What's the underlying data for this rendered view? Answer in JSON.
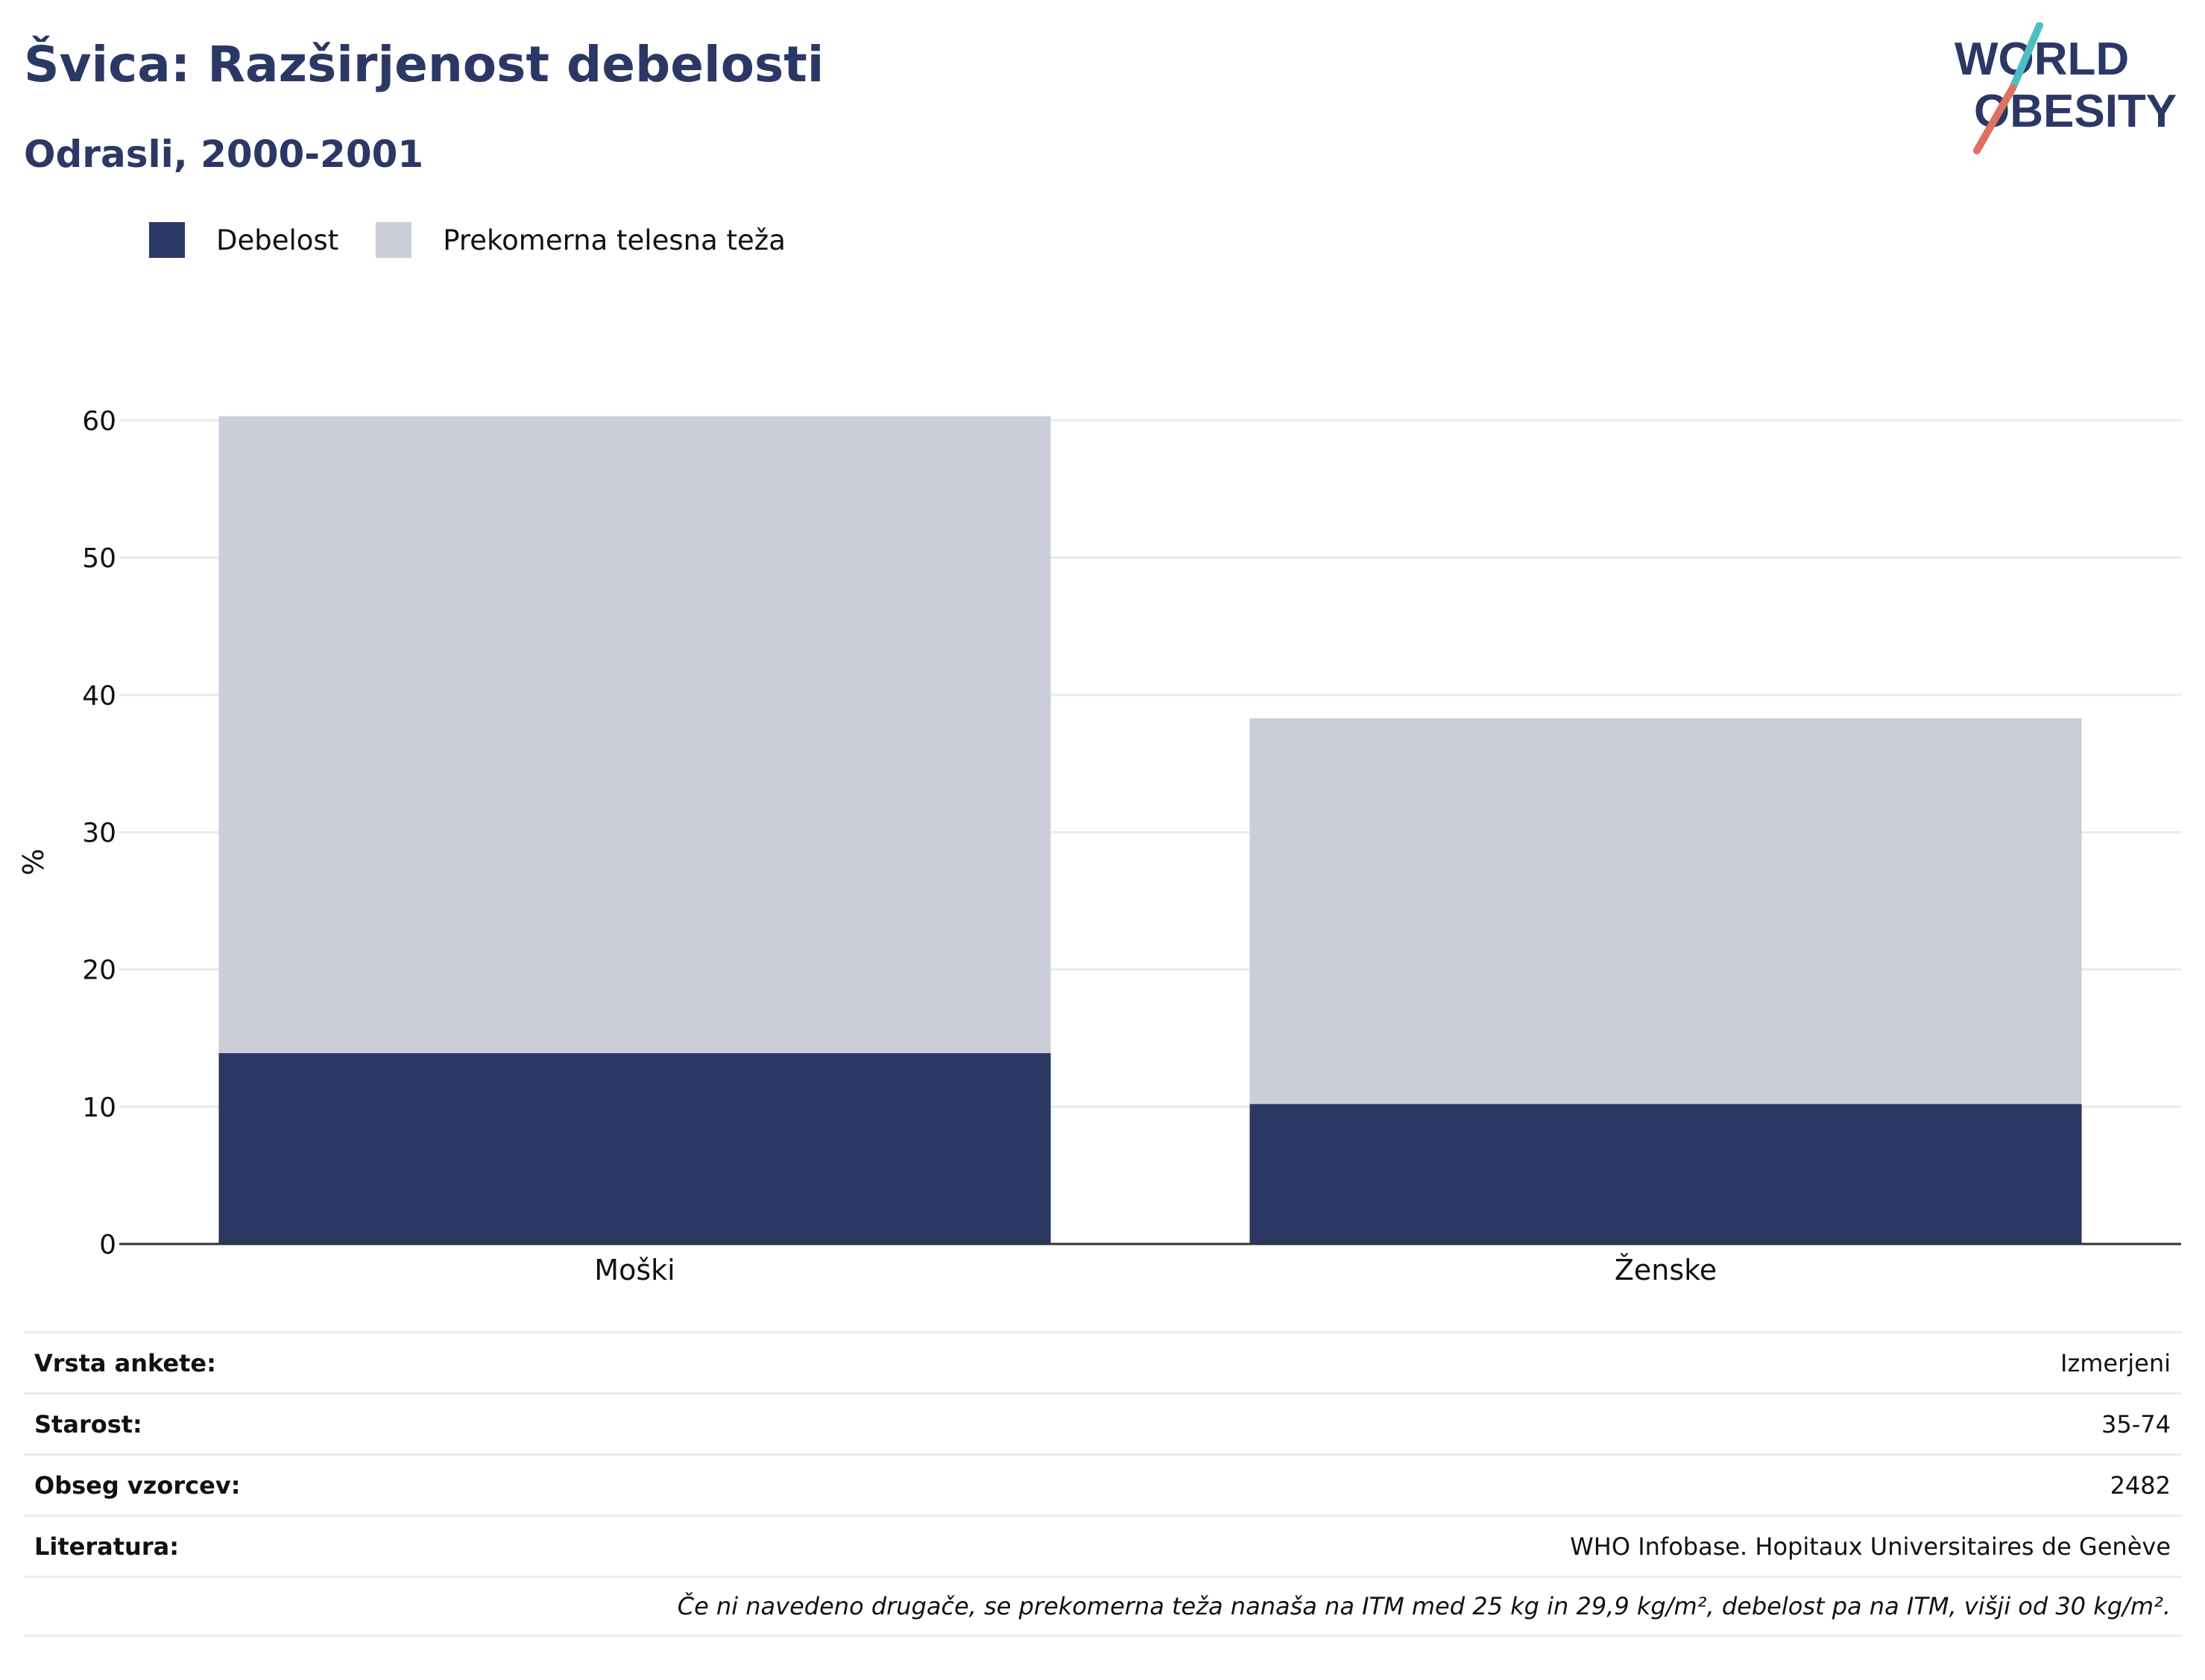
{
  "header": {
    "title": "Švica: Razširjenost debelosti",
    "subtitle": "Odrasli, 2000-2001",
    "logo_text_1": "WORLD",
    "logo_text_2": "OBESITY"
  },
  "colors": {
    "obesity": "#2b3765",
    "overweight": "#cbcdd9",
    "title": "#2b3866",
    "logo_teal": "#4bbfbf",
    "logo_coral": "#e0705f"
  },
  "legend": {
    "items": [
      {
        "label": "Debelost",
        "color": "#2b3765"
      },
      {
        "label": "Prekomerna telesna teža",
        "color": "#cbcdd9"
      }
    ]
  },
  "chart_data": {
    "type": "bar",
    "stacked": true,
    "categories": [
      "Moški",
      "Ženske"
    ],
    "series": [
      {
        "name": "Debelost",
        "values": [
          13.9,
          10.2
        ]
      },
      {
        "name": "Prekomerna telesna teža",
        "values": [
          46.4,
          28.1
        ]
      }
    ],
    "ylabel": "%",
    "ylim": [
      0,
      60
    ],
    "yticks": [
      0,
      10,
      20,
      30,
      40,
      50,
      60
    ],
    "grid": true
  },
  "meta": {
    "rows": [
      {
        "label": "Vrsta ankete:",
        "value": "Izmerjeni"
      },
      {
        "label": "Starost:",
        "value": "35-74"
      },
      {
        "label": "Obseg vzorcev:",
        "value": "2482"
      },
      {
        "label": "Literatura:",
        "value": "WHO Infobase. Hopitaux Universitaires de Genève"
      }
    ],
    "note": "Če ni navedeno drugače, se prekomerna teža nanaša na ITM med 25 kg in 29,9 kg/m², debelost pa na ITM, višji od 30 kg/m²."
  }
}
